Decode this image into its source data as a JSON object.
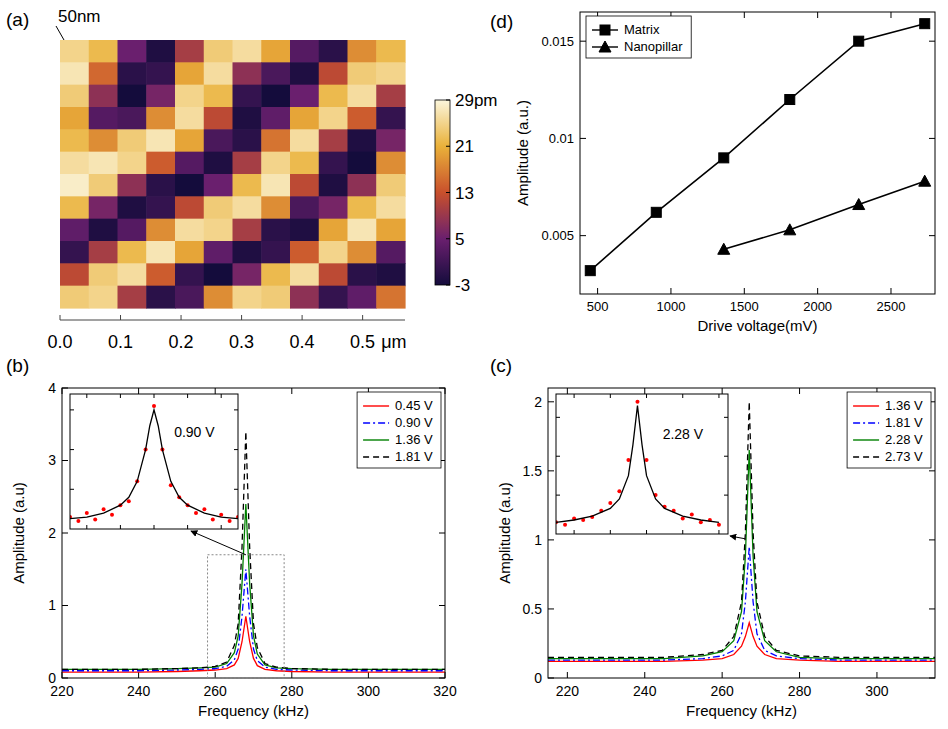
{
  "chart_data": [
    {
      "type": "heatmap",
      "label": "(a)",
      "height_label": "50nm",
      "xlim": [
        0,
        0.57
      ],
      "xticks": [
        {
          "value": 0,
          "label": "0.0"
        },
        {
          "value": 0.1,
          "label": "0.1"
        },
        {
          "value": 0.2,
          "label": "0.2"
        },
        {
          "value": 0.3,
          "label": "0.3"
        },
        {
          "value": 0.4,
          "label": "0.4"
        },
        {
          "value": 0.5,
          "label": "0.5"
        }
      ],
      "x_unit": "μm",
      "cells": [
        [
          25,
          22,
          5,
          -2,
          10,
          24,
          26,
          20,
          3,
          -1,
          18,
          22
        ],
        [
          27,
          15,
          -1,
          0,
          20,
          26,
          8,
          2,
          -2,
          12,
          24,
          25
        ],
        [
          24,
          8,
          -3,
          6,
          25,
          22,
          0,
          -3,
          5,
          22,
          26,
          10
        ],
        [
          20,
          3,
          2,
          18,
          26,
          12,
          -2,
          4,
          20,
          25,
          14,
          0
        ],
        [
          22,
          18,
          24,
          27,
          20,
          2,
          -1,
          16,
          26,
          10,
          -2,
          6
        ],
        [
          26,
          27,
          25,
          14,
          3,
          -2,
          10,
          25,
          22,
          0,
          -3,
          18
        ],
        [
          28,
          24,
          8,
          -1,
          -3,
          5,
          22,
          27,
          12,
          -2,
          8,
          24
        ],
        [
          22,
          6,
          -2,
          0,
          12,
          24,
          26,
          18,
          2,
          6,
          22,
          26
        ],
        [
          4,
          -2,
          3,
          18,
          26,
          25,
          10,
          -1,
          -2,
          20,
          27,
          20
        ],
        [
          0,
          10,
          22,
          27,
          20,
          4,
          -2,
          0,
          14,
          25,
          18,
          3
        ],
        [
          12,
          24,
          26,
          14,
          0,
          -3,
          6,
          22,
          26,
          12,
          -1,
          -2
        ],
        [
          24,
          25,
          10,
          -1,
          2,
          18,
          25,
          24,
          8,
          0,
          4,
          16
        ]
      ],
      "colorbar": {
        "range": [
          -3,
          29
        ],
        "ticks": [
          {
            "value": 29,
            "label": "29pm"
          },
          21,
          13,
          5,
          -3
        ]
      }
    },
    {
      "type": "line",
      "label": "(b)",
      "x_label": "Frequency (kHz)",
      "y_label": "Amplitude (a.u)",
      "xlim": [
        220,
        320
      ],
      "xticks": [
        220,
        240,
        260,
        280,
        300,
        320
      ],
      "ylim": [
        0,
        4
      ],
      "yticks": [
        0,
        1,
        2,
        3,
        4
      ],
      "legend": "upper right",
      "x": [
        220,
        230,
        240,
        250,
        256,
        260,
        263,
        265,
        266,
        267,
        268,
        269,
        270,
        271,
        273,
        276,
        280,
        290,
        300,
        310,
        320
      ],
      "series": [
        {
          "name": "0.45 V",
          "color": "#ff0000",
          "line_style": "solid",
          "values": [
            0.08,
            0.08,
            0.08,
            0.09,
            0.1,
            0.11,
            0.13,
            0.18,
            0.27,
            0.5,
            0.85,
            0.5,
            0.27,
            0.17,
            0.12,
            0.1,
            0.09,
            0.08,
            0.08,
            0.08,
            0.08
          ]
        },
        {
          "name": "0.90 V",
          "color": "#0000ff",
          "line_style": "dashdot",
          "values": [
            0.1,
            0.1,
            0.1,
            0.11,
            0.12,
            0.13,
            0.16,
            0.25,
            0.4,
            0.85,
            1.5,
            0.85,
            0.4,
            0.24,
            0.15,
            0.12,
            0.11,
            0.1,
            0.1,
            0.1,
            0.1
          ]
        },
        {
          "name": "1.36 V",
          "color": "#008000",
          "line_style": "solid",
          "values": [
            0.12,
            0.12,
            0.12,
            0.13,
            0.14,
            0.15,
            0.2,
            0.35,
            0.58,
            1.3,
            2.4,
            1.3,
            0.58,
            0.33,
            0.18,
            0.14,
            0.13,
            0.12,
            0.12,
            0.12,
            0.12
          ]
        },
        {
          "name": "1.81 V",
          "color": "#000000",
          "line_style": "dashed",
          "values": [
            0.12,
            0.12,
            0.12,
            0.13,
            0.14,
            0.16,
            0.22,
            0.45,
            0.75,
            1.8,
            3.4,
            1.8,
            0.75,
            0.42,
            0.2,
            0.15,
            0.13,
            0.12,
            0.12,
            0.12,
            0.12
          ]
        }
      ]
    },
    {
      "type": "line",
      "annotation": "0.90 V",
      "tick_labels": false,
      "xlim": [
        258,
        278
      ],
      "xticks": [
        260,
        264,
        268,
        272,
        276
      ],
      "ylim": [
        0,
        1.7
      ],
      "yticks": [
        0.5,
        1,
        1.5
      ],
      "series": [
        {
          "type": "scatter",
          "color": "#ff0000",
          "marker": "dot",
          "x": [
            258,
            259,
            260,
            261,
            262,
            263,
            264,
            265,
            266,
            267,
            268,
            269,
            270,
            271,
            272,
            273,
            274,
            275,
            276,
            277,
            278
          ],
          "values": [
            0.15,
            0.1,
            0.2,
            0.12,
            0.25,
            0.18,
            0.3,
            0.35,
            0.6,
            1.0,
            1.55,
            1.0,
            0.55,
            0.4,
            0.3,
            0.2,
            0.25,
            0.12,
            0.18,
            0.1,
            0.15
          ]
        },
        {
          "type": "line",
          "color": "#000000",
          "line_style": "solid",
          "x": [
            258,
            260,
            262,
            264,
            265,
            266,
            267,
            267.5,
            268,
            268.5,
            269,
            270,
            271,
            272,
            274,
            276,
            278
          ],
          "values": [
            0.13,
            0.15,
            0.2,
            0.3,
            0.4,
            0.6,
            1.0,
            1.3,
            1.5,
            1.3,
            1.0,
            0.6,
            0.4,
            0.3,
            0.2,
            0.15,
            0.13
          ]
        }
      ]
    },
    {
      "type": "line",
      "label": "(c)",
      "x_label": "Frequency (kHz)",
      "y_label": "Amplitude (a.u)",
      "xlim": [
        215,
        315
      ],
      "xticks": [
        220,
        240,
        260,
        280,
        300
      ],
      "ylim": [
        0,
        2.1
      ],
      "yticks": [
        0,
        0.5,
        1,
        1.5,
        2
      ],
      "legend": "upper right",
      "x": [
        215,
        225,
        235,
        245,
        255,
        260,
        263,
        265,
        266,
        267,
        268,
        269,
        271,
        274,
        280,
        290,
        300,
        315
      ],
      "series": [
        {
          "name": "1.36 V",
          "color": "#ff0000",
          "line_style": "solid",
          "values": [
            0.12,
            0.12,
            0.12,
            0.12,
            0.13,
            0.14,
            0.17,
            0.23,
            0.3,
            0.4,
            0.3,
            0.23,
            0.17,
            0.14,
            0.13,
            0.12,
            0.12,
            0.12
          ]
        },
        {
          "name": "1.81 V",
          "color": "#0000ff",
          "line_style": "dashdot",
          "values": [
            0.13,
            0.13,
            0.13,
            0.13,
            0.14,
            0.16,
            0.2,
            0.32,
            0.55,
            0.95,
            0.55,
            0.32,
            0.2,
            0.16,
            0.14,
            0.13,
            0.13,
            0.13
          ]
        },
        {
          "name": "2.28 V",
          "color": "#008000",
          "line_style": "solid",
          "values": [
            0.14,
            0.14,
            0.14,
            0.14,
            0.16,
            0.19,
            0.27,
            0.48,
            0.88,
            1.65,
            0.88,
            0.48,
            0.27,
            0.19,
            0.15,
            0.14,
            0.14,
            0.14
          ]
        },
        {
          "name": "2.73 V",
          "color": "#000000",
          "line_style": "dashed",
          "values": [
            0.15,
            0.15,
            0.15,
            0.15,
            0.17,
            0.2,
            0.3,
            0.55,
            1.05,
            2.0,
            1.05,
            0.55,
            0.3,
            0.2,
            0.16,
            0.15,
            0.15,
            0.15
          ]
        }
      ]
    },
    {
      "type": "line",
      "annotation": "2.28 V",
      "tick_labels": false,
      "xlim": [
        258,
        277
      ],
      "xticks": [
        260,
        264,
        268,
        272,
        276
      ],
      "ylim": [
        0,
        1.8
      ],
      "yticks": [
        0.5,
        1,
        1.5
      ],
      "series": [
        {
          "type": "scatter",
          "color": "#ff0000",
          "marker": "dot",
          "x": [
            258,
            259,
            260,
            261,
            262,
            263,
            264,
            265,
            266,
            267,
            268,
            269,
            270,
            271,
            272,
            273,
            274,
            275,
            276
          ],
          "values": [
            0.15,
            0.12,
            0.2,
            0.18,
            0.22,
            0.3,
            0.4,
            0.55,
            0.95,
            1.7,
            0.95,
            0.5,
            0.35,
            0.3,
            0.2,
            0.25,
            0.15,
            0.18,
            0.12
          ]
        },
        {
          "type": "line",
          "color": "#000000",
          "line_style": "solid",
          "x": [
            258,
            260,
            262,
            264,
            265,
            266,
            266.5,
            267,
            267.5,
            268,
            269,
            270,
            272,
            274,
            276
          ],
          "values": [
            0.15,
            0.18,
            0.23,
            0.33,
            0.45,
            0.75,
            1.15,
            1.65,
            1.15,
            0.75,
            0.45,
            0.33,
            0.23,
            0.18,
            0.15
          ]
        }
      ]
    },
    {
      "type": "line",
      "label": "(d)",
      "x_label": "Drive voltage(mV)",
      "y_label": "Amplitude (a.u.)",
      "xlim": [
        380,
        2800
      ],
      "xticks": [
        500,
        1000,
        1500,
        2000,
        2500
      ],
      "ylim": [
        0.002,
        0.0165
      ],
      "yticks": [
        0.005,
        0.01,
        0.015
      ],
      "legend": "upper left",
      "series": [
        {
          "name": "Matrix",
          "color": "#000000",
          "marker": "square",
          "line_style": "solid",
          "x": [
            450,
            900,
            1360,
            1810,
            2280,
            2730
          ],
          "values": [
            0.0032,
            0.0062,
            0.009,
            0.012,
            0.015,
            0.0159
          ]
        },
        {
          "name": "Nanopillar",
          "color": "#000000",
          "marker": "triangle",
          "line_style": "solid",
          "x": [
            1360,
            1810,
            2280,
            2730
          ],
          "values": [
            0.0043,
            0.0053,
            0.0066,
            0.0078
          ]
        }
      ]
    }
  ]
}
